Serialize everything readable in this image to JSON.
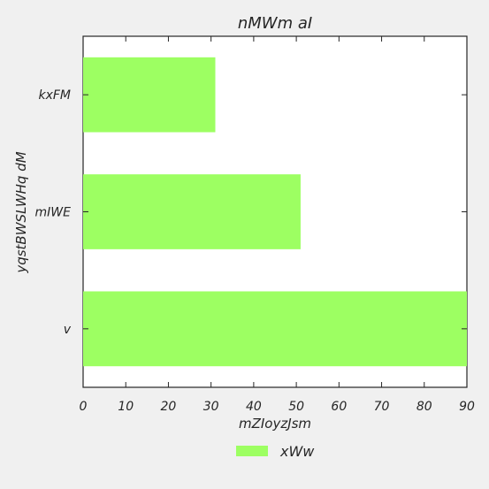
{
  "chart_data": {
    "type": "bar",
    "orientation": "horizontal",
    "title": "nMWm aI",
    "xlabel": "mZIoyzJsm",
    "ylabel": "yqstBWSLWHq dM",
    "categories": [
      "kxFM",
      "mIWE",
      "v"
    ],
    "series": [
      {
        "name": "xWw",
        "values": [
          31,
          51,
          90
        ],
        "color": "#9dff62"
      }
    ],
    "xlim": [
      0,
      90
    ],
    "xticks": [
      0,
      10,
      20,
      30,
      40,
      50,
      60,
      70,
      80,
      90
    ],
    "grid": false,
    "legend_position": "bottom-center"
  },
  "colors": {
    "background": "#f0f0f0",
    "plot_background": "#ffffff",
    "axis": "#262626"
  }
}
